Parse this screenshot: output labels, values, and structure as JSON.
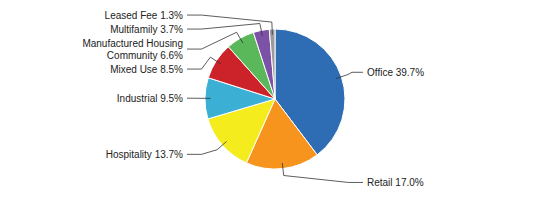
{
  "chart_data": {
    "type": "pie",
    "categories": [
      "Office 39.7%",
      "Retail 17.0%",
      "Hospitality 13.7%",
      "Industrial 9.5%",
      "Mixed Use 8.5%",
      "Manufactured Housing\nCommunity 6.6%",
      "Multifamily 3.7%",
      "Leased Fee 1.3%"
    ],
    "values": [
      39.7,
      17.0,
      13.7,
      9.5,
      8.5,
      6.6,
      3.7,
      1.3
    ],
    "colors": [
      "#2E6DB4",
      "#F7941D",
      "#F5EC1D",
      "#3BB0D4",
      "#CC2229",
      "#5BB85A",
      "#7B52A6",
      "#9B9B9B"
    ]
  }
}
